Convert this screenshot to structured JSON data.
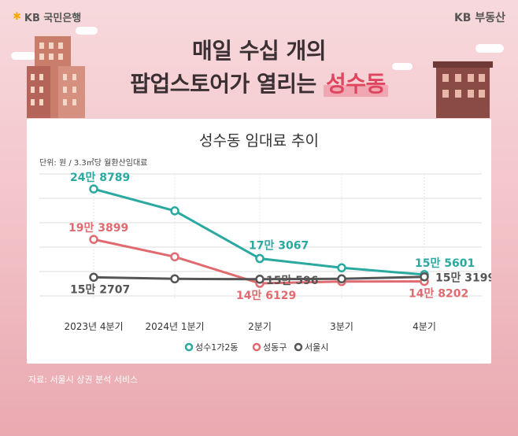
{
  "brand": {
    "left_logo": "KB 국민은행",
    "right_logo": "KB 부동산"
  },
  "headline": {
    "line1": "매일 수십 개의",
    "line2_prefix": "팝업스토어가 열리는 ",
    "line2_highlight": "성수동"
  },
  "source": "자료: 서울시 상권 분석 서비스",
  "colors": {
    "teal": "#2aa9a0",
    "red": "#e06a6f",
    "gray": "#555555",
    "highlight": "#e0455f"
  },
  "chart_data": {
    "type": "line",
    "title": "성수동 임대료 추이",
    "unit_label": "단위: 원 / 3.3㎡당 월환산임대료",
    "categories": [
      "2023년 4분기",
      "2024년 1분기",
      "2분기",
      "3분기",
      "4분기"
    ],
    "series": [
      {
        "name": "성수1가2동",
        "color": "#2aa9a0",
        "values": [
          248789,
          225000,
          173067,
          163000,
          155601
        ],
        "labels": [
          "24만 8789",
          "",
          "17만 3067",
          "",
          "15만 5601"
        ]
      },
      {
        "name": "성동구",
        "color": "#e06a6f",
        "values": [
          193899,
          175000,
          146129,
          148000,
          148202
        ],
        "labels": [
          "19만 3899",
          "",
          "14만 6129",
          "",
          "14만 8202"
        ]
      },
      {
        "name": "서울시",
        "color": "#555555",
        "values": [
          152707,
          151000,
          150596,
          151000,
          153199
        ],
        "labels": [
          "15만 2707",
          "",
          "15만 596",
          "",
          "15만 3199"
        ]
      }
    ],
    "grid": true,
    "legend": "bottom"
  }
}
